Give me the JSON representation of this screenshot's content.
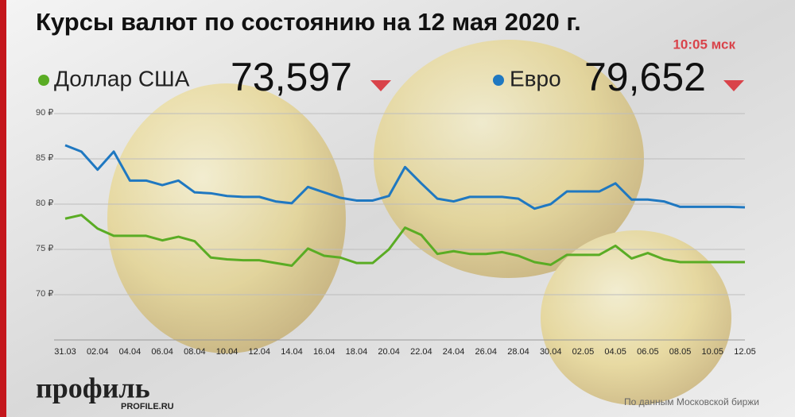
{
  "chart_data": {
    "type": "line",
    "title": "Курсы валют по состоянию на 12 мая 2020 г.",
    "time": "10:05 мск",
    "source": "По данным Московской биржи",
    "logo": "профиль",
    "logo_url": "PROFILE.RU",
    "categories": [
      "31.03",
      null,
      "02.04",
      null,
      "04.04",
      null,
      "06.04",
      null,
      "08.04",
      null,
      "10.04",
      null,
      "12.04",
      null,
      "14.04",
      null,
      "16.04",
      null,
      "18.04",
      null,
      "20.04",
      null,
      "22.04",
      null,
      "24.04",
      null,
      "26.04",
      null,
      "28.04",
      null,
      "30.04",
      null,
      "02.05",
      null,
      "04.05",
      null,
      "06.05",
      null,
      "08.05",
      null,
      "10.05",
      null,
      "12.05"
    ],
    "series": [
      {
        "name": "Доллар США",
        "rate": "73,597",
        "color": "#5aac24",
        "values": [
          78.4,
          78.8,
          77.3,
          76.5,
          76.5,
          76.5,
          76.0,
          76.4,
          75.9,
          74.1,
          73.9,
          73.8,
          73.8,
          73.5,
          73.2,
          75.1,
          74.3,
          74.1,
          73.5,
          73.5,
          75.0,
          77.4,
          76.6,
          74.5,
          74.8,
          74.5,
          74.5,
          74.7,
          74.3,
          73.6,
          73.3,
          74.4,
          74.4,
          74.4,
          75.4,
          74.0,
          74.6,
          73.9,
          73.6,
          73.6,
          73.6,
          73.6,
          73.6
        ]
      },
      {
        "name": "Евро",
        "rate": "79,652",
        "color": "#1f78c1",
        "values": [
          86.5,
          85.8,
          83.8,
          85.8,
          82.6,
          82.6,
          82.1,
          82.6,
          81.3,
          81.2,
          80.9,
          80.8,
          80.8,
          80.3,
          80.1,
          81.9,
          81.3,
          80.7,
          80.4,
          80.4,
          80.9,
          84.1,
          82.3,
          80.6,
          80.3,
          80.8,
          80.8,
          80.8,
          80.6,
          79.5,
          80.0,
          81.4,
          81.4,
          81.4,
          82.3,
          80.5,
          80.5,
          80.3,
          79.7,
          79.7,
          79.7,
          79.7,
          79.65
        ]
      }
    ],
    "ylim": [
      65,
      90
    ],
    "yticks": [
      {
        "value": 70,
        "label": "70 ₽"
      },
      {
        "value": 75,
        "label": "75 ₽"
      },
      {
        "value": 80,
        "label": "80 ₽"
      },
      {
        "value": 85,
        "label": "85 ₽"
      },
      {
        "value": 90,
        "label": "90 ₽"
      }
    ],
    "grid": true
  }
}
